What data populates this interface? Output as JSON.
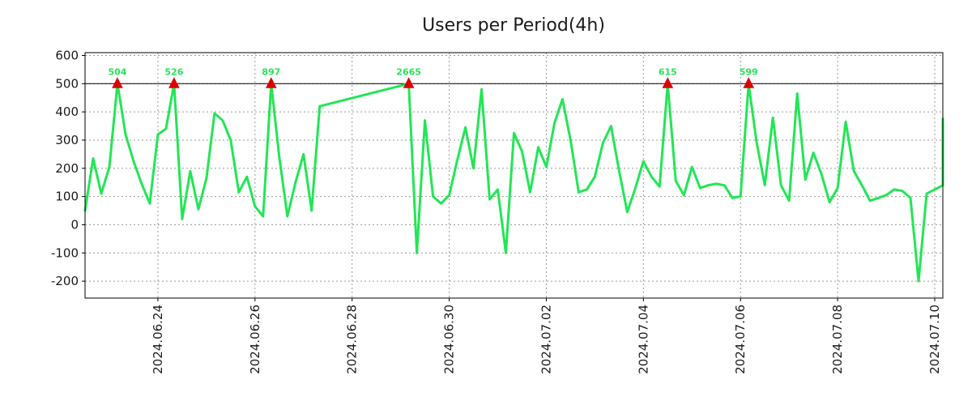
{
  "chart_data": {
    "type": "line",
    "title": "Users per Period(4h)",
    "xlabel": "",
    "ylabel": "",
    "ylim": [
      -260,
      610
    ],
    "xlim": [
      "2024-06-22 12:00",
      "2024-07-10 04:00"
    ],
    "yticks": [
      600,
      500,
      400,
      300,
      200,
      100,
      0,
      -100,
      -200
    ],
    "xticks": [
      {
        "label": "2024.06.24",
        "x": "2024-06-24 00:00"
      },
      {
        "label": "2024.06.26",
        "x": "2024-06-26 00:00"
      },
      {
        "label": "2024.06.28",
        "x": "2024-06-28 00:00"
      },
      {
        "label": "2024.06.30",
        "x": "2024-06-30 00:00"
      },
      {
        "label": "2024.07.02",
        "x": "2024-07-02 00:00"
      },
      {
        "label": "2024.07.04",
        "x": "2024-07-04 00:00"
      },
      {
        "label": "2024.07.06",
        "x": "2024-07-06 00:00"
      },
      {
        "label": "2024.07.08",
        "x": "2024-07-08 00:00"
      },
      {
        "label": "2024.07.10",
        "x": "2024-07-10 00:00"
      }
    ],
    "grid": true,
    "threshold": 500,
    "line_color": "#22e655",
    "marker_color": "#dd0000",
    "label_color": "#22e655",
    "series": [
      {
        "name": "Users",
        "points": [
          [
            "2024-06-22 12:00",
            50
          ],
          [
            "2024-06-22 16:00",
            235
          ],
          [
            "2024-06-22 20:00",
            110
          ],
          [
            "2024-06-23 00:00",
            205
          ],
          [
            "2024-06-23 04:00",
            500
          ],
          [
            "2024-06-23 08:00",
            320
          ],
          [
            "2024-06-23 12:00",
            225
          ],
          [
            "2024-06-23 16:00",
            145
          ],
          [
            "2024-06-23 20:00",
            75
          ],
          [
            "2024-06-24 00:00",
            320
          ],
          [
            "2024-06-24 04:00",
            340
          ],
          [
            "2024-06-24 08:00",
            500
          ],
          [
            "2024-06-24 12:00",
            20
          ],
          [
            "2024-06-24 16:00",
            190
          ],
          [
            "2024-06-24 20:00",
            55
          ],
          [
            "2024-06-25 00:00",
            165
          ],
          [
            "2024-06-25 04:00",
            395
          ],
          [
            "2024-06-25 08:00",
            370
          ],
          [
            "2024-06-25 12:00",
            300
          ],
          [
            "2024-06-25 16:00",
            115
          ],
          [
            "2024-06-25 20:00",
            170
          ],
          [
            "2024-06-26 00:00",
            65
          ],
          [
            "2024-06-26 04:00",
            30
          ],
          [
            "2024-06-26 08:00",
            500
          ],
          [
            "2024-06-26 12:00",
            240
          ],
          [
            "2024-06-26 16:00",
            30
          ],
          [
            "2024-06-26 20:00",
            150
          ],
          [
            "2024-06-27 00:00",
            250
          ],
          [
            "2024-06-27 04:00",
            50
          ],
          [
            "2024-06-27 08:00",
            420
          ],
          [
            "2024-06-29 04:00",
            500
          ],
          [
            "2024-06-29 08:00",
            -100
          ],
          [
            "2024-06-29 12:00",
            370
          ],
          [
            "2024-06-29 16:00",
            100
          ],
          [
            "2024-06-29 20:00",
            75
          ],
          [
            "2024-06-30 00:00",
            105
          ],
          [
            "2024-06-30 04:00",
            230
          ],
          [
            "2024-06-30 08:00",
            345
          ],
          [
            "2024-06-30 12:00",
            200
          ],
          [
            "2024-06-30 16:00",
            480
          ],
          [
            "2024-06-30 20:00",
            90
          ],
          [
            "2024-07-01 00:00",
            125
          ],
          [
            "2024-07-01 04:00",
            -100
          ],
          [
            "2024-07-01 08:00",
            325
          ],
          [
            "2024-07-01 12:00",
            260
          ],
          [
            "2024-07-01 16:00",
            115
          ],
          [
            "2024-07-01 20:00",
            275
          ],
          [
            "2024-07-02 00:00",
            205
          ],
          [
            "2024-07-02 04:00",
            360
          ],
          [
            "2024-07-02 08:00",
            445
          ],
          [
            "2024-07-02 12:00",
            300
          ],
          [
            "2024-07-02 16:00",
            115
          ],
          [
            "2024-07-02 20:00",
            125
          ],
          [
            "2024-07-03 00:00",
            170
          ],
          [
            "2024-07-03 04:00",
            290
          ],
          [
            "2024-07-03 08:00",
            350
          ],
          [
            "2024-07-03 12:00",
            190
          ],
          [
            "2024-07-03 16:00",
            45
          ],
          [
            "2024-07-03 20:00",
            130
          ],
          [
            "2024-07-04 00:00",
            225
          ],
          [
            "2024-07-04 04:00",
            170
          ],
          [
            "2024-07-04 08:00",
            135
          ],
          [
            "2024-07-04 12:00",
            500
          ],
          [
            "2024-07-04 16:00",
            155
          ],
          [
            "2024-07-04 20:00",
            105
          ],
          [
            "2024-07-05 00:00",
            205
          ],
          [
            "2024-07-05 04:00",
            130
          ],
          [
            "2024-07-05 08:00",
            140
          ],
          [
            "2024-07-05 12:00",
            145
          ],
          [
            "2024-07-05 16:00",
            140
          ],
          [
            "2024-07-05 20:00",
            95
          ],
          [
            "2024-07-06 00:00",
            100
          ],
          [
            "2024-07-06 04:00",
            500
          ],
          [
            "2024-07-06 08:00",
            290
          ],
          [
            "2024-07-06 12:00",
            140
          ],
          [
            "2024-07-06 16:00",
            380
          ],
          [
            "2024-07-06 20:00",
            140
          ],
          [
            "2024-07-07 00:00",
            85
          ],
          [
            "2024-07-07 04:00",
            465
          ],
          [
            "2024-07-07 08:00",
            160
          ],
          [
            "2024-07-07 12:00",
            255
          ],
          [
            "2024-07-07 16:00",
            180
          ],
          [
            "2024-07-07 20:00",
            80
          ],
          [
            "2024-07-08 00:00",
            130
          ],
          [
            "2024-07-08 04:00",
            365
          ],
          [
            "2024-07-08 08:00",
            190
          ],
          [
            "2024-07-08 12:00",
            140
          ],
          [
            "2024-07-08 16:00",
            85
          ],
          [
            "2024-07-08 20:00",
            95
          ],
          [
            "2024-07-09 00:00",
            105
          ],
          [
            "2024-07-09 04:00",
            125
          ],
          [
            "2024-07-09 08:00",
            120
          ],
          [
            "2024-07-09 12:00",
            95
          ],
          [
            "2024-07-09 16:00",
            -200
          ],
          [
            "2024-07-09 20:00",
            110
          ],
          [
            "2024-07-10 00:00",
            125
          ],
          [
            "2024-07-10 04:00",
            140
          ],
          [
            "2024-07-10 08:00",
            375
          ]
        ]
      }
    ],
    "peaks": [
      {
        "x": "2024-06-23 04:00",
        "y": 500,
        "label": "504"
      },
      {
        "x": "2024-06-24 08:00",
        "y": 500,
        "label": "526"
      },
      {
        "x": "2024-06-26 08:00",
        "y": 500,
        "label": "897"
      },
      {
        "x": "2024-06-29 04:00",
        "y": 500,
        "label": "2665"
      },
      {
        "x": "2024-07-04 12:00",
        "y": 500,
        "label": "615"
      },
      {
        "x": "2024-07-06 04:00",
        "y": 500,
        "label": "599"
      }
    ]
  }
}
